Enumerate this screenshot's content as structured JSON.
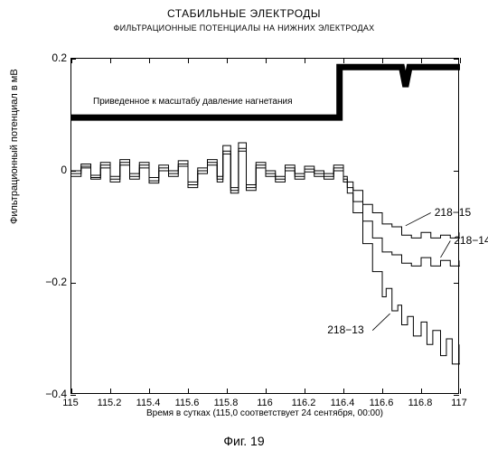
{
  "title_main": "СТАБИЛЬНЫЕ ЭЛЕКТРОДЫ",
  "title_sub": "ФИЛЬТРАЦИОННЫЕ ПОТЕНЦИАЛЫ НА НИЖНИХ ЭЛЕКТРОДАХ",
  "yaxis_label": "Фильтрационный потенциал в мВ",
  "xaxis_label": "Время в сутках (115,0 соответствует 24 сентября, 00:00)",
  "figure_label": "Фиг. 19",
  "annotation_pressure": "Приведенное к масштабу давление нагнетания",
  "chart": {
    "type": "line",
    "xlim": [
      115,
      117
    ],
    "ylim": [
      -0.4,
      0.2
    ],
    "yticks": [
      -0.4,
      -0.2,
      0,
      0.2
    ],
    "xticks": [
      115,
      115.2,
      115.4,
      115.6,
      115.8,
      116,
      116.2,
      116.4,
      116.6,
      116.8,
      117
    ],
    "line_color": "#000000",
    "line_width": 1,
    "pressure_line_width": 7,
    "background_color": "#ffffff",
    "border_color": "#000000",
    "series_labels": {
      "s15": "218−15",
      "s14": "218−14",
      "s13": "218−13"
    },
    "series_label_positions": {
      "s15": {
        "x": 116.85,
        "y": -0.075
      },
      "s14": {
        "x": 116.95,
        "y": -0.125
      },
      "s13": {
        "x": 116.55,
        "y": -0.285
      }
    },
    "pressure": [
      [
        115,
        0.095
      ],
      [
        116.38,
        0.095
      ],
      [
        116.38,
        0.185
      ],
      [
        116.7,
        0.185
      ],
      [
        116.72,
        0.15
      ],
      [
        116.74,
        0.185
      ],
      [
        117,
        0.185
      ]
    ],
    "s15": [
      [
        115,
        0.0
      ],
      [
        115.05,
        0.012
      ],
      [
        115.1,
        -0.008
      ],
      [
        115.15,
        0.015
      ],
      [
        115.2,
        -0.01
      ],
      [
        115.25,
        0.02
      ],
      [
        115.3,
        -0.005
      ],
      [
        115.35,
        0.015
      ],
      [
        115.4,
        -0.012
      ],
      [
        115.45,
        0.01
      ],
      [
        115.5,
        0.0
      ],
      [
        115.55,
        0.018
      ],
      [
        115.6,
        -0.02
      ],
      [
        115.65,
        0.005
      ],
      [
        115.7,
        0.02
      ],
      [
        115.75,
        -0.01
      ],
      [
        115.78,
        0.045
      ],
      [
        115.82,
        -0.03
      ],
      [
        115.86,
        0.05
      ],
      [
        115.9,
        -0.025
      ],
      [
        115.95,
        0.015
      ],
      [
        116,
        0.0
      ],
      [
        116.05,
        -0.01
      ],
      [
        116.1,
        0.01
      ],
      [
        116.15,
        -0.005
      ],
      [
        116.2,
        0.008
      ],
      [
        116.25,
        0.0
      ],
      [
        116.3,
        -0.005
      ],
      [
        116.35,
        0.01
      ],
      [
        116.4,
        -0.01
      ],
      [
        116.42,
        -0.02
      ],
      [
        116.45,
        -0.035
      ],
      [
        116.5,
        -0.06
      ],
      [
        116.55,
        -0.075
      ],
      [
        116.6,
        -0.095
      ],
      [
        116.65,
        -0.1
      ],
      [
        116.7,
        -0.115
      ],
      [
        116.75,
        -0.12
      ],
      [
        116.8,
        -0.11
      ],
      [
        116.85,
        -0.12
      ],
      [
        116.9,
        -0.115
      ],
      [
        116.95,
        -0.12
      ],
      [
        117,
        -0.11
      ]
    ],
    "s14": [
      [
        115,
        -0.005
      ],
      [
        115.05,
        0.008
      ],
      [
        115.1,
        -0.012
      ],
      [
        115.15,
        0.01
      ],
      [
        115.2,
        -0.015
      ],
      [
        115.25,
        0.015
      ],
      [
        115.3,
        -0.01
      ],
      [
        115.35,
        0.01
      ],
      [
        115.4,
        -0.018
      ],
      [
        115.45,
        0.005
      ],
      [
        115.5,
        -0.005
      ],
      [
        115.55,
        0.012
      ],
      [
        115.6,
        -0.025
      ],
      [
        115.65,
        0.0
      ],
      [
        115.7,
        0.015
      ],
      [
        115.75,
        -0.015
      ],
      [
        115.78,
        0.035
      ],
      [
        115.82,
        -0.035
      ],
      [
        115.86,
        0.04
      ],
      [
        115.9,
        -0.03
      ],
      [
        115.95,
        0.01
      ],
      [
        116,
        -0.005
      ],
      [
        116.05,
        -0.015
      ],
      [
        116.1,
        0.005
      ],
      [
        116.15,
        -0.01
      ],
      [
        116.2,
        0.003
      ],
      [
        116.25,
        -0.005
      ],
      [
        116.3,
        -0.01
      ],
      [
        116.35,
        0.005
      ],
      [
        116.4,
        -0.015
      ],
      [
        116.42,
        -0.03
      ],
      [
        116.45,
        -0.055
      ],
      [
        116.5,
        -0.09
      ],
      [
        116.55,
        -0.12
      ],
      [
        116.6,
        -0.145
      ],
      [
        116.65,
        -0.15
      ],
      [
        116.7,
        -0.165
      ],
      [
        116.75,
        -0.17
      ],
      [
        116.8,
        -0.155
      ],
      [
        116.85,
        -0.17
      ],
      [
        116.9,
        -0.16
      ],
      [
        116.95,
        -0.17
      ],
      [
        117,
        -0.16
      ]
    ],
    "s13": [
      [
        115,
        -0.01
      ],
      [
        115.05,
        0.005
      ],
      [
        115.1,
        -0.015
      ],
      [
        115.15,
        0.005
      ],
      [
        115.2,
        -0.02
      ],
      [
        115.25,
        0.01
      ],
      [
        115.3,
        -0.015
      ],
      [
        115.35,
        0.005
      ],
      [
        115.4,
        -0.022
      ],
      [
        115.45,
        0.0
      ],
      [
        115.5,
        -0.01
      ],
      [
        115.55,
        0.008
      ],
      [
        115.6,
        -0.03
      ],
      [
        115.65,
        -0.005
      ],
      [
        115.7,
        0.01
      ],
      [
        115.75,
        -0.02
      ],
      [
        115.78,
        0.03
      ],
      [
        115.82,
        -0.04
      ],
      [
        115.86,
        0.035
      ],
      [
        115.9,
        -0.035
      ],
      [
        115.95,
        0.005
      ],
      [
        116,
        -0.01
      ],
      [
        116.05,
        -0.02
      ],
      [
        116.1,
        0.0
      ],
      [
        116.15,
        -0.015
      ],
      [
        116.2,
        -0.002
      ],
      [
        116.25,
        -0.01
      ],
      [
        116.3,
        -0.015
      ],
      [
        116.35,
        0.0
      ],
      [
        116.4,
        -0.02
      ],
      [
        116.42,
        -0.04
      ],
      [
        116.45,
        -0.075
      ],
      [
        116.5,
        -0.13
      ],
      [
        116.55,
        -0.18
      ],
      [
        116.6,
        -0.225
      ],
      [
        116.62,
        -0.21
      ],
      [
        116.65,
        -0.25
      ],
      [
        116.68,
        -0.24
      ],
      [
        116.7,
        -0.275
      ],
      [
        116.73,
        -0.26
      ],
      [
        116.76,
        -0.295
      ],
      [
        116.8,
        -0.27
      ],
      [
        116.83,
        -0.31
      ],
      [
        116.86,
        -0.285
      ],
      [
        116.9,
        -0.33
      ],
      [
        116.93,
        -0.3
      ],
      [
        116.96,
        -0.345
      ],
      [
        117,
        -0.31
      ]
    ]
  }
}
